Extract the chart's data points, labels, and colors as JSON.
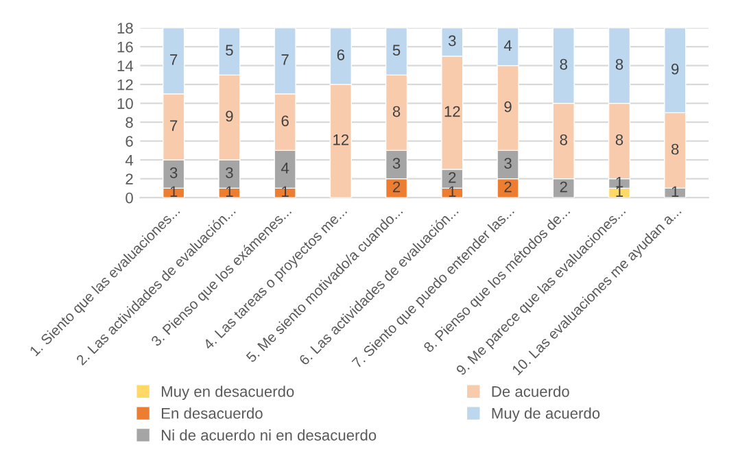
{
  "chart_data": {
    "type": "bar",
    "stacked": true,
    "categories": [
      "1. Siento que las evaluaciones...",
      "2. Las actividades de evaluación...",
      "3. Pienso que los exámenes...",
      "4. Las tareas o proyectos me...",
      "5. Me siento motivado/a cuando...",
      "6. Las actividades de evaluación...",
      "7. Siento que puedo entender las...",
      "8. Pienso que los métodos de...",
      "9. Me parece que las evaluaciones...",
      "10. Las evaluaciones me ayudan a..."
    ],
    "series": [
      {
        "name": "Muy en desacuerdo",
        "color": "#ffd966",
        "values": [
          0,
          0,
          0,
          0,
          0,
          0,
          0,
          0,
          1,
          0
        ],
        "value_labels": [
          null,
          null,
          null,
          null,
          null,
          null,
          null,
          null,
          "1",
          null
        ]
      },
      {
        "name": "En desacuerdo",
        "color": "#ed7d31",
        "values": [
          1,
          1,
          1,
          0,
          2,
          1,
          2,
          0,
          0,
          0
        ],
        "value_labels": [
          "1",
          "1",
          "1",
          null,
          "2",
          "1",
          "2",
          null,
          null,
          null
        ]
      },
      {
        "name": "Ni de acuerdo ni en desacuerdo",
        "color": "#a5a5a5",
        "values": [
          3,
          3,
          4,
          0,
          3,
          2,
          3,
          2,
          1,
          1
        ],
        "value_labels": [
          "3",
          "3",
          "4",
          null,
          "3",
          "2",
          "3",
          "2",
          "1",
          "1"
        ]
      },
      {
        "name": "De acuerdo",
        "color": "#f8cbad",
        "values": [
          7,
          9,
          6,
          12,
          8,
          12,
          9,
          8,
          8,
          8
        ],
        "value_labels": [
          "7",
          "9",
          "6",
          "12",
          "8",
          "12",
          "9",
          "8",
          "8",
          "8"
        ]
      },
      {
        "name": "Muy de acuerdo",
        "color": "#bdd7ee",
        "values": [
          7,
          5,
          7,
          6,
          5,
          3,
          4,
          8,
          8,
          9
        ],
        "value_labels": [
          "7",
          "5",
          "7",
          "6",
          "5",
          "3",
          "4",
          "8",
          "8",
          "9"
        ]
      }
    ],
    "ylim": [
      0,
      18
    ],
    "yticks": [
      0,
      2,
      4,
      6,
      8,
      10,
      12,
      14,
      16,
      18
    ],
    "grid": "y",
    "legend": "bottom"
  }
}
